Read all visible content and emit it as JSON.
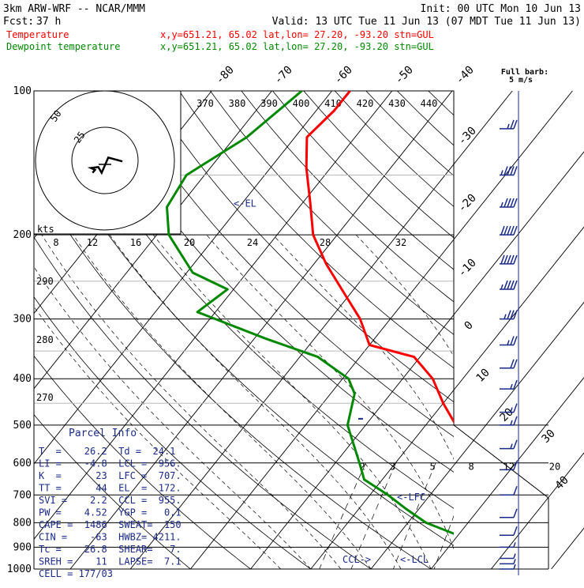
{
  "header": {
    "model": "3km ARW-WRF -- NCAR/MMM",
    "init": "Init: 00 UTC Mon 10 Jun 13",
    "fcst_label": "Fcst:",
    "fcst_value": "37 h",
    "valid": "Valid: 13 UTC Tue 11 Jun 13 (07 MDT Tue 11 Jun 13)",
    "temp_label": "Temperature",
    "temp_info": "x,y=651.21, 65.02   lat,lon= 27.20, -93.20   stn=GUL",
    "dew_label": "Dewpoint temperature",
    "dew_info": "x,y=651.21, 65.02   lat,lon= 27.20, -93.20   stn=GUL",
    "full_barb": "Full barb:",
    "full_barb_value": "5 m/s"
  },
  "colors": {
    "temperature": "#ff0000",
    "dewpoint": "#008800",
    "wind": "#1a2a8a",
    "text": "#000000"
  },
  "chart_data": {
    "type": "line",
    "subtype": "skew-T log-P sounding",
    "x_axis": "temperature (C), skewed",
    "y_axis": "pressure (hPa), log scale",
    "pressure_levels": [
      "100",
      "200",
      "300",
      "400",
      "500",
      "600",
      "700",
      "800",
      "900",
      "1000"
    ],
    "isotherm_labels": [
      "-80",
      "-70",
      "-60",
      "-50",
      "-40",
      "-30",
      "-20",
      "-10",
      "0",
      "10",
      "20",
      "30",
      "40"
    ],
    "theta_labels": [
      "370",
      "380",
      "390",
      "400",
      "410",
      "420",
      "430",
      "440"
    ],
    "mixing_ratio_labels": [
      "2",
      "3",
      "5",
      "8",
      "12",
      "20"
    ],
    "hodograph": {
      "units": "kts",
      "ring_labels": [
        "25",
        "50"
      ],
      "scale_labels": [
        "8",
        "12",
        "16",
        "20",
        "24",
        "28",
        "32"
      ],
      "points": [
        [
          -15,
          -3
        ],
        [
          -12,
          0
        ],
        [
          -17,
          2
        ],
        [
          -8,
          3
        ],
        [
          -4,
          -3
        ],
        [
          4,
          13
        ],
        [
          21,
          9
        ]
      ]
    },
    "side_labels": [
      "290",
      "280",
      "270"
    ],
    "markers": {
      "el": "<-EL",
      "lfc": "<-LFC",
      "lcl": "<-LCL",
      "ccl": "CCL->"
    },
    "series": [
      {
        "name": "Temperature",
        "points": [
          [
            -67,
            100
          ],
          [
            -67,
            110
          ],
          [
            -68,
            125
          ],
          [
            -64,
            145
          ],
          [
            -59,
            170
          ],
          [
            -54,
            200
          ],
          [
            -48,
            230
          ],
          [
            -42,
            260
          ],
          [
            -35,
            300
          ],
          [
            -30,
            340
          ],
          [
            -21,
            360
          ],
          [
            -15,
            400
          ],
          [
            -10,
            450
          ],
          [
            -5,
            500
          ],
          [
            1,
            550
          ],
          [
            6,
            600
          ],
          [
            10,
            650
          ],
          [
            15,
            700
          ],
          [
            19,
            750
          ],
          [
            20,
            800
          ],
          [
            21,
            850
          ],
          [
            21,
            880
          ],
          [
            22,
            900
          ],
          [
            22,
            930
          ],
          [
            23,
            960
          ],
          [
            24,
            975
          ],
          [
            26,
            990
          ]
        ]
      },
      {
        "name": "Dewpoint temperature",
        "points": [
          [
            -75,
            100
          ],
          [
            -78,
            125
          ],
          [
            -83,
            150
          ],
          [
            -82,
            175
          ],
          [
            -78,
            200
          ],
          [
            -69,
            240
          ],
          [
            -61,
            260
          ],
          [
            -63,
            290
          ],
          [
            -48,
            330
          ],
          [
            -37,
            360
          ],
          [
            -29,
            400
          ],
          [
            -26,
            430
          ],
          [
            -23,
            500
          ],
          [
            -16,
            600
          ],
          [
            -13,
            650
          ],
          [
            -7,
            700
          ],
          [
            -2,
            750
          ],
          [
            3,
            800
          ],
          [
            10,
            850
          ],
          [
            18,
            880
          ],
          [
            20,
            900
          ],
          [
            22,
            950
          ],
          [
            23,
            975
          ],
          [
            24,
            990
          ]
        ]
      }
    ],
    "wind_profile_kt": [
      {
        "p": 120,
        "spd": 25
      },
      {
        "p": 150,
        "spd": 45
      },
      {
        "p": 175,
        "spd": 45
      },
      {
        "p": 200,
        "spd": 50
      },
      {
        "p": 230,
        "spd": 50
      },
      {
        "p": 260,
        "spd": 45
      },
      {
        "p": 300,
        "spd": 35
      },
      {
        "p": 340,
        "spd": 25
      },
      {
        "p": 380,
        "spd": 20
      },
      {
        "p": 420,
        "spd": 15
      },
      {
        "p": 470,
        "spd": 15
      },
      {
        "p": 500,
        "spd": 15
      },
      {
        "p": 560,
        "spd": 15
      },
      {
        "p": 620,
        "spd": 10
      },
      {
        "p": 700,
        "spd": 10
      },
      {
        "p": 780,
        "spd": 10
      },
      {
        "p": 850,
        "spd": 10
      },
      {
        "p": 900,
        "spd": 5
      },
      {
        "p": 950,
        "spd": 5
      },
      {
        "p": 975,
        "spd": 5
      },
      {
        "p": 1000,
        "spd": 5
      }
    ]
  },
  "parcel_info": {
    "title": "Parcel Info",
    "rows": [
      "T  =    26.2  Td =  24.1",
      "LI =    -4.8  LCL =  956.",
      "K  =      23  LFC =  707.",
      "TT =      44  EL  =  172.",
      "SVI =    2.2  CCL =  955.",
      "PW =    4.52  YGP =   0.1",
      "CAPE =  1486  SWEAT=  150",
      "CIN =    -63  HWBZ= 4211.",
      "Tc =    26.8  SHEAR=   7.",
      "SREH =    11  LAPSE=  7.1",
      "CELL = 177/03"
    ]
  }
}
